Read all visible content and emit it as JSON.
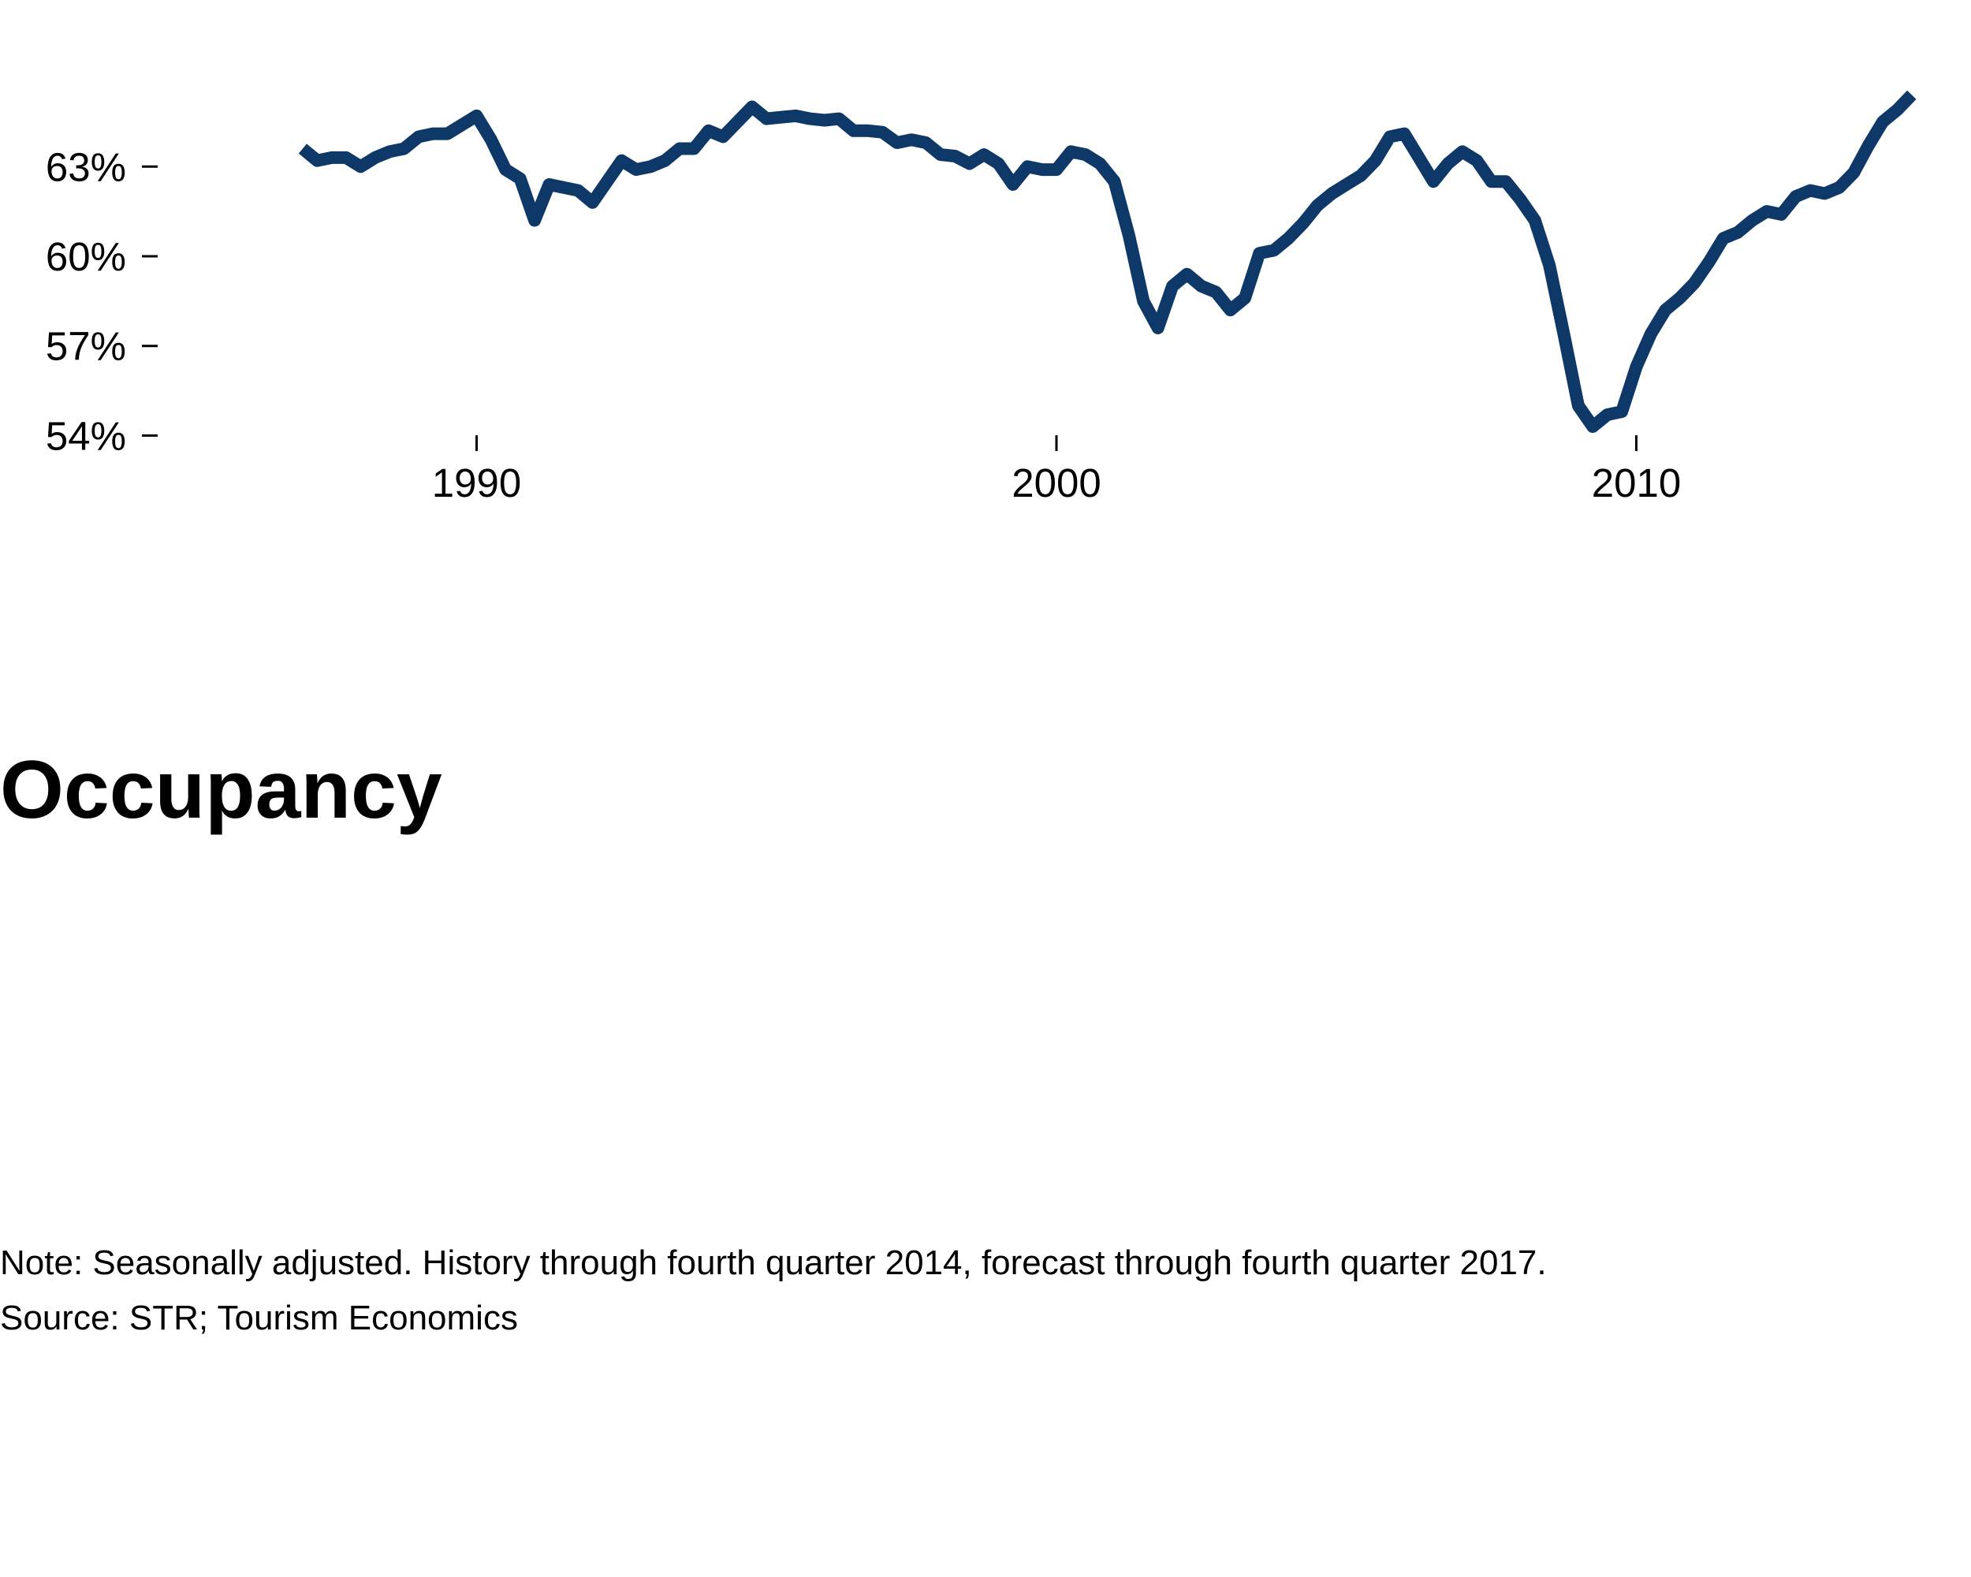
{
  "chart_data": {
    "type": "line",
    "title": "Occupancy",
    "xlabel": "",
    "ylabel": "",
    "xlim": [
      1984.5,
      2015.5
    ],
    "ylim": [
      53.8,
      66.2
    ],
    "x_ticks": [
      {
        "value": 1990,
        "label": "1990"
      },
      {
        "value": 2000,
        "label": "2000"
      },
      {
        "value": 2010,
        "label": "2010"
      }
    ],
    "y_ticks": [
      {
        "value": 54,
        "label": "54%"
      },
      {
        "value": 57,
        "label": "57%"
      },
      {
        "value": 60,
        "label": "60%"
      },
      {
        "value": 63,
        "label": "63%"
      }
    ],
    "grid": false,
    "line_color": "#0d3868",
    "series": [
      {
        "x": [
          1987.0,
          1987.25,
          1987.5,
          1987.75,
          1988.0,
          1988.25,
          1988.5,
          1988.75,
          1989.0,
          1989.25,
          1989.5,
          1989.75,
          1990.0,
          1990.25,
          1990.5,
          1990.75,
          1991.0,
          1991.25,
          1991.5,
          1991.75,
          1992.0,
          1992.25,
          1992.5,
          1992.75,
          1993.0,
          1993.25,
          1993.5,
          1993.75,
          1994.0,
          1994.25,
          1994.5,
          1994.75,
          1995.0,
          1995.25,
          1995.5,
          1995.75,
          1996.0,
          1996.25,
          1996.5,
          1996.75,
          1997.0,
          1997.25,
          1997.5,
          1997.75,
          1998.0,
          1998.25,
          1998.5,
          1998.75,
          1999.0,
          1999.25,
          1999.5,
          1999.75,
          2000.0,
          2000.25,
          2000.5,
          2000.75,
          2001.0,
          2001.25,
          2001.5,
          2001.75,
          2002.0,
          2002.25,
          2002.5,
          2002.75,
          2003.0,
          2003.25,
          2003.5,
          2003.75,
          2004.0,
          2004.25,
          2004.5,
          2004.75,
          2005.0,
          2005.25,
          2005.5,
          2005.75,
          2006.0,
          2006.25,
          2006.5,
          2006.75,
          2007.0,
          2007.25,
          2007.5,
          2007.75,
          2008.0,
          2008.25,
          2008.5,
          2008.75,
          2009.0,
          2009.25,
          2009.5,
          2009.75,
          2010.0,
          2010.25,
          2010.5,
          2010.75,
          2011.0,
          2011.25,
          2011.5,
          2011.75,
          2012.0,
          2012.25,
          2012.5,
          2012.75,
          2013.0,
          2013.25,
          2013.5,
          2013.75,
          2014.0,
          2014.25,
          2014.5,
          2014.75
        ],
        "values": [
          63.6,
          63.2,
          63.3,
          63.3,
          63.0,
          63.3,
          63.5,
          63.6,
          64.0,
          64.1,
          64.1,
          64.4,
          64.7,
          63.9,
          62.9,
          62.6,
          61.2,
          62.4,
          62.3,
          62.2,
          61.8,
          62.5,
          63.2,
          62.9,
          63.0,
          63.2,
          63.6,
          63.6,
          64.2,
          64.0,
          64.5,
          65.0,
          64.6,
          64.65,
          64.7,
          64.6,
          64.55,
          64.6,
          64.2,
          64.2,
          64.15,
          63.8,
          63.9,
          63.8,
          63.4,
          63.35,
          63.1,
          63.4,
          63.1,
          62.4,
          63.0,
          62.9,
          62.9,
          63.5,
          63.4,
          63.1,
          62.5,
          60.7,
          58.5,
          57.6,
          59.0,
          59.4,
          59.0,
          58.8,
          58.2,
          58.6,
          60.1,
          60.2,
          60.6,
          61.1,
          61.7,
          62.1,
          62.4,
          62.7,
          63.2,
          64.0,
          64.1,
          63.3,
          62.5,
          63.1,
          63.5,
          63.2,
          62.5,
          62.5,
          61.9,
          61.2,
          59.7,
          57.4,
          55.0,
          54.3,
          54.7,
          54.8,
          56.3,
          57.4,
          58.2,
          58.6,
          59.1,
          59.8,
          60.6,
          60.8,
          61.2,
          61.5,
          61.4,
          62.0,
          62.2,
          62.1,
          62.3,
          62.8,
          63.7,
          64.5,
          64.9,
          65.4
        ]
      }
    ]
  },
  "notes": {
    "note": "Note: Seasonally adjusted. History through fourth quarter 2014, forecast through fourth quarter 2017.",
    "source": "Source: STR; Tourism Economics"
  }
}
